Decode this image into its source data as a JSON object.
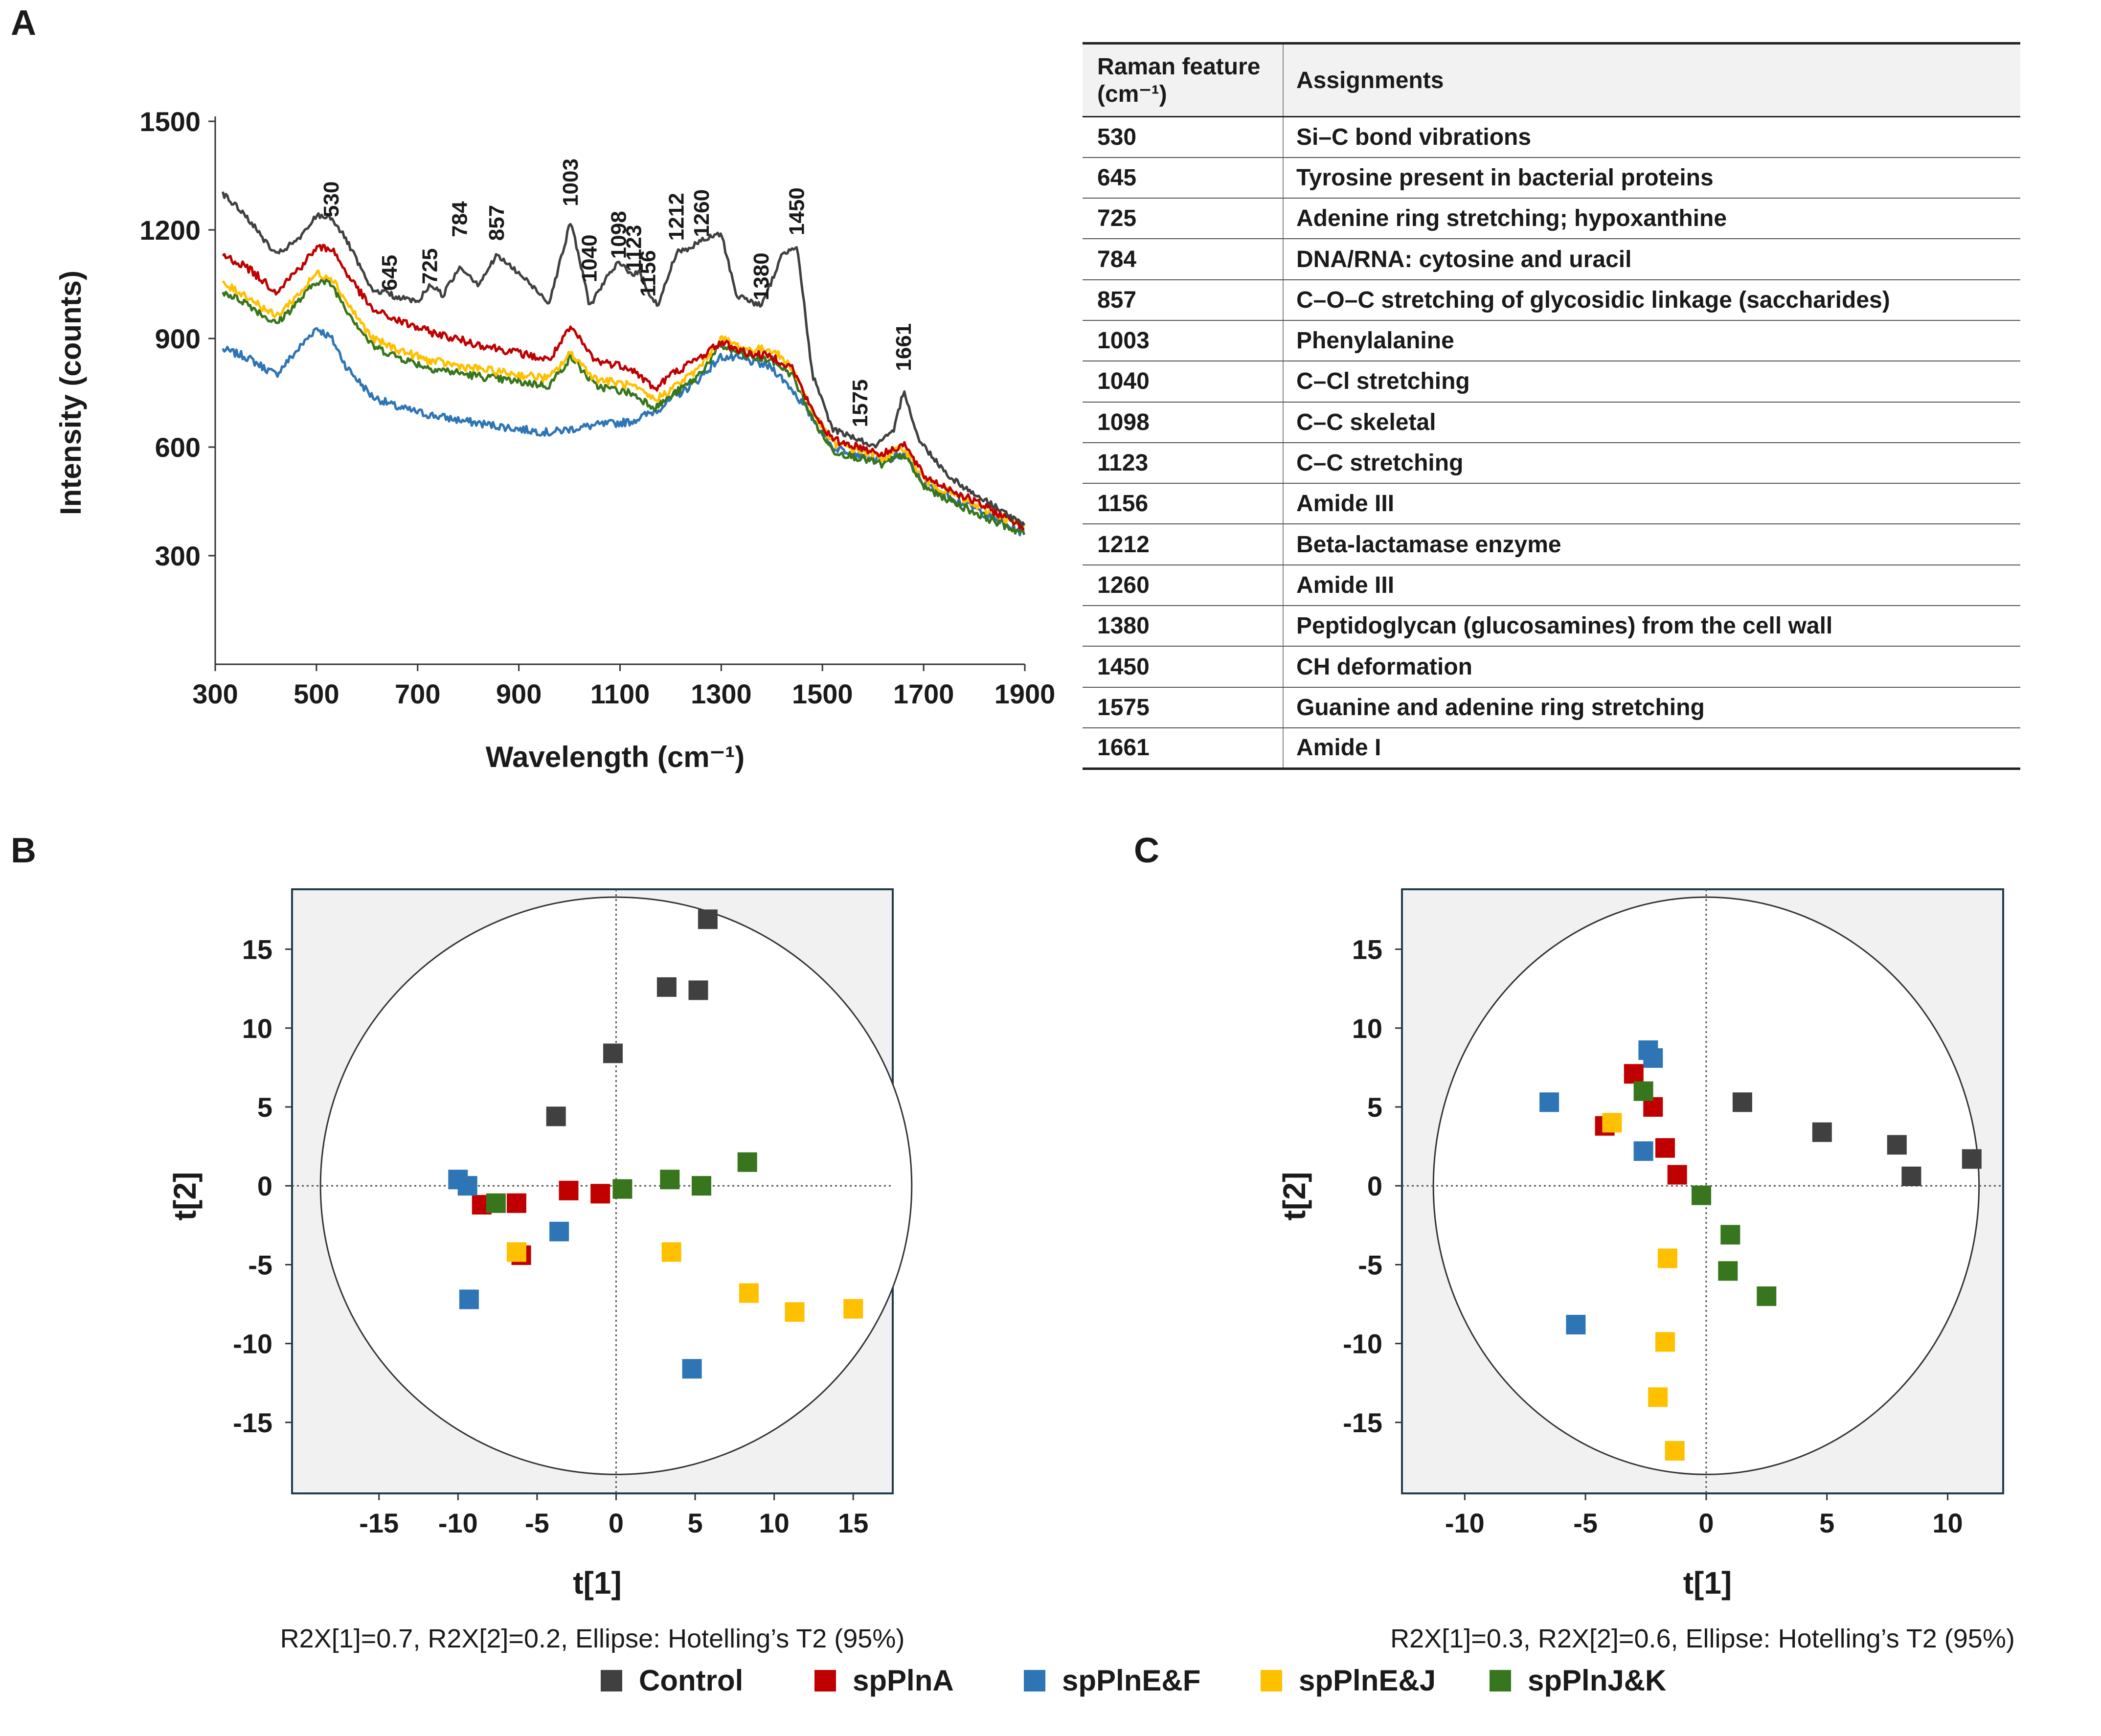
{
  "panels": {
    "a": "A",
    "b": "B",
    "c": "C"
  },
  "spectra": {
    "xlabel": "Wavelength (cm⁻¹)",
    "ylabel": "Intensity (counts)",
    "xlim": [
      300,
      1900
    ],
    "ylim": [
      0,
      1500
    ],
    "xticks": [
      300,
      500,
      700,
      900,
      1100,
      1300,
      1500,
      1700,
      1900
    ],
    "yticks": [
      300,
      600,
      900,
      1200,
      1500
    ],
    "peak_labels": [
      {
        "label": "530",
        "x": 530,
        "y": 1235
      },
      {
        "label": "645",
        "x": 645,
        "y": 1032
      },
      {
        "label": "725",
        "x": 725,
        "y": 1050
      },
      {
        "label": "784",
        "x": 784,
        "y": 1180
      },
      {
        "label": "857",
        "x": 857,
        "y": 1170
      },
      {
        "label": "1003",
        "x": 1003,
        "y": 1265
      },
      {
        "label": "1040",
        "x": 1040,
        "y": 1055
      },
      {
        "label": "1098",
        "x": 1098,
        "y": 1120
      },
      {
        "label": "1123",
        "x": 1128,
        "y": 1085
      },
      {
        "label": "1156",
        "x": 1156,
        "y": 1015
      },
      {
        "label": "1212",
        "x": 1212,
        "y": 1170
      },
      {
        "label": "1260",
        "x": 1262,
        "y": 1180
      },
      {
        "label": "1380",
        "x": 1380,
        "y": 1005
      },
      {
        "label": "1450",
        "x": 1450,
        "y": 1185
      },
      {
        "label": "1575",
        "x": 1575,
        "y": 655
      },
      {
        "label": "1661",
        "x": 1661,
        "y": 810
      }
    ]
  },
  "table": {
    "header": {
      "feature_line1": "Raman feature",
      "feature_line2": "(cm⁻¹)",
      "assignment": "Assignments"
    },
    "rows": [
      {
        "feature": "530",
        "assignment": "Si–C bond vibrations"
      },
      {
        "feature": "645",
        "assignment": "Tyrosine present in bacterial proteins"
      },
      {
        "feature": "725",
        "assignment": "Adenine ring stretching; hypoxanthine"
      },
      {
        "feature": "784",
        "assignment": "DNA/RNA: cytosine and uracil"
      },
      {
        "feature": "857",
        "assignment": "C–O–C stretching of glycosidic linkage (saccharides)"
      },
      {
        "feature": "1003",
        "assignment": "Phenylalanine"
      },
      {
        "feature": "1040",
        "assignment": "C–Cl stretching"
      },
      {
        "feature": "1098",
        "assignment": "C–C skeletal"
      },
      {
        "feature": "1123",
        "assignment": "C–C stretching"
      },
      {
        "feature": "1156",
        "assignment": "Amide III"
      },
      {
        "feature": "1212",
        "assignment": "Beta-lactamase enzyme"
      },
      {
        "feature": "1260",
        "assignment": "Amide III"
      },
      {
        "feature": "1380",
        "assignment": "Peptidoglycan (glucosamines) from the cell wall"
      },
      {
        "feature": "1450",
        "assignment": "CH deformation"
      },
      {
        "feature": "1575",
        "assignment": "Guanine and adenine ring stretching"
      },
      {
        "feature": "1661",
        "assignment": "Amide I"
      }
    ]
  },
  "pca_b": {
    "xlabel": "t[1]",
    "ylabel": "t[2]",
    "caption": "R2X[1]=0.7, R2X[2]=0.2, Ellipse: Hotelling’s T2 (95%)",
    "xlim": [
      -20.5,
      17.5
    ],
    "ylim": [
      -19.5,
      18.8
    ],
    "xticks": [
      -15,
      -10,
      -5,
      0,
      5,
      10,
      15
    ],
    "yticks": [
      15,
      10,
      5,
      0,
      -5,
      -10,
      -15
    ],
    "ellipse": {
      "rx": 18.7,
      "ry": 18.3
    },
    "points": {
      "Control": [
        [
          5.8,
          16.9
        ],
        [
          3.2,
          12.6
        ],
        [
          5.2,
          12.4
        ],
        [
          -0.2,
          8.4
        ],
        [
          -3.8,
          4.4
        ]
      ],
      "spPlnA": [
        [
          -3.0,
          -0.3
        ],
        [
          -1.0,
          -0.5
        ],
        [
          -8.5,
          -1.2
        ],
        [
          -6.3,
          -1.1
        ],
        [
          -6.0,
          -4.4
        ]
      ],
      "spPlnE&F": [
        [
          -10.0,
          0.4
        ],
        [
          -9.4,
          0.0
        ],
        [
          -3.6,
          -2.9
        ],
        [
          -9.3,
          -7.2
        ],
        [
          4.8,
          -11.6
        ]
      ],
      "spPlnE&J": [
        [
          -6.3,
          -4.2
        ],
        [
          3.5,
          -4.2
        ],
        [
          8.4,
          -6.8
        ],
        [
          11.3,
          -8.0
        ],
        [
          15.0,
          -7.8
        ]
      ],
      "spPlnJ&K": [
        [
          0.4,
          -0.2
        ],
        [
          3.4,
          0.4
        ],
        [
          5.4,
          0.0
        ],
        [
          8.3,
          1.5
        ],
        [
          -7.6,
          -1.1
        ]
      ]
    }
  },
  "pca_c": {
    "xlabel": "t[1]",
    "ylabel": "t[2]",
    "caption": "R2X[1]=0.3, R2X[2]=0.6, Ellipse: Hotelling’s T2 (95%)",
    "xlim": [
      -12.6,
      12.3
    ],
    "ylim": [
      -19.5,
      18.8
    ],
    "xticks": [
      -10,
      -5,
      0,
      5,
      10
    ],
    "yticks": [
      15,
      10,
      5,
      0,
      -5,
      -10,
      -15
    ],
    "ellipse": {
      "rx": 11.3,
      "ry": 18.3
    },
    "points": {
      "Control": [
        [
          1.5,
          5.3
        ],
        [
          4.8,
          3.4
        ],
        [
          7.9,
          2.6
        ],
        [
          8.5,
          0.6
        ],
        [
          11.0,
          1.7
        ]
      ],
      "spPlnA": [
        [
          -3.0,
          7.1
        ],
        [
          -2.2,
          5.0
        ],
        [
          -4.2,
          3.8
        ],
        [
          -1.7,
          2.4
        ],
        [
          -1.2,
          0.7
        ]
      ],
      "spPlnE&F": [
        [
          -6.5,
          5.3
        ],
        [
          -2.4,
          8.6
        ],
        [
          -2.2,
          8.1
        ],
        [
          -2.6,
          2.2
        ],
        [
          -5.4,
          -8.8
        ]
      ],
      "spPlnE&J": [
        [
          -3.9,
          4.0
        ],
        [
          -1.6,
          -4.6
        ],
        [
          -1.7,
          -9.9
        ],
        [
          -2.0,
          -13.4
        ],
        [
          -1.3,
          -16.8
        ]
      ],
      "spPlnJ&K": [
        [
          -2.6,
          6.0
        ],
        [
          -0.2,
          -0.6
        ],
        [
          1.0,
          -3.1
        ],
        [
          0.9,
          -5.4
        ],
        [
          2.5,
          -7.0
        ]
      ]
    }
  },
  "legend": [
    {
      "name": "Control",
      "color": "#404040"
    },
    {
      "name": "spPlnA",
      "color": "#c00000"
    },
    {
      "name": "spPlnE&F",
      "color": "#2e75b6"
    },
    {
      "name": "spPlnE&J",
      "color": "#ffc000"
    },
    {
      "name": "spPlnJ&K",
      "color": "#38761d"
    }
  ],
  "series_colors": {
    "Control": "#404040",
    "spPlnA": "#c00000",
    "spPlnE&F": "#2e75b6",
    "spPlnE&J": "#ffc000",
    "spPlnJ&K": "#38761d"
  },
  "chart_data": [
    {
      "type": "line",
      "title": "",
      "xlabel": "Wavelength (cm⁻¹)",
      "ylabel": "Intensity (counts)",
      "xlim": [
        300,
        1900
      ],
      "ylim": [
        0,
        1500
      ],
      "series": [
        {
          "name": "Control",
          "x": [
            315,
            360,
            420,
            470,
            500,
            530,
            560,
            610,
            640,
            660,
            680,
            700,
            725,
            750,
            784,
            820,
            857,
            900,
            960,
            1003,
            1040,
            1070,
            1098,
            1123,
            1140,
            1156,
            1175,
            1212,
            1240,
            1260,
            1300,
            1330,
            1380,
            1420,
            1450,
            1480,
            1520,
            1575,
            1600,
            1640,
            1661,
            1690,
            1750,
            1800,
            1850,
            1900
          ],
          "y": [
            1300,
            1240,
            1130,
            1180,
            1240,
            1235,
            1170,
            1030,
            1030,
            1010,
            1010,
            1000,
            1050,
            1020,
            1100,
            1050,
            1130,
            1080,
            1000,
            1225,
            990,
            1060,
            1110,
            1080,
            1080,
            1030,
            990,
            1140,
            1150,
            1170,
            1190,
            1020,
            990,
            1130,
            1160,
            800,
            650,
            620,
            600,
            640,
            760,
            620,
            520,
            470,
            430,
            380
          ]
        },
        {
          "name": "spPlnA",
          "x": [
            315,
            360,
            420,
            470,
            500,
            530,
            560,
            610,
            660,
            720,
            800,
            900,
            960,
            1003,
            1050,
            1120,
            1170,
            1200,
            1250,
            1300,
            1350,
            1400,
            1440,
            1480,
            1520,
            1575,
            1620,
            1661,
            1700,
            1800,
            1900
          ],
          "y": [
            1130,
            1100,
            1030,
            1100,
            1150,
            1150,
            1080,
            980,
            950,
            920,
            890,
            860,
            840,
            930,
            840,
            820,
            760,
            800,
            840,
            890,
            860,
            850,
            820,
            700,
            620,
            600,
            580,
            610,
            520,
            450,
            380
          ]
        },
        {
          "name": "spPlnE&J",
          "x": [
            315,
            360,
            420,
            470,
            500,
            530,
            560,
            610,
            660,
            720,
            800,
            900,
            960,
            1003,
            1050,
            1120,
            1170,
            1200,
            1250,
            1300,
            1350,
            1400,
            1440,
            1480,
            1520,
            1575,
            1620,
            1661,
            1700,
            1800,
            1900
          ],
          "y": [
            1050,
            1020,
            960,
            1030,
            1080,
            1070,
            1000,
            900,
            870,
            840,
            820,
            800,
            790,
            860,
            790,
            770,
            730,
            760,
            810,
            900,
            870,
            870,
            820,
            700,
            610,
            590,
            570,
            600,
            510,
            440,
            380
          ]
        },
        {
          "name": "spPlnJ&K",
          "x": [
            315,
            360,
            420,
            470,
            500,
            530,
            560,
            610,
            660,
            720,
            800,
            900,
            960,
            1003,
            1050,
            1120,
            1170,
            1200,
            1250,
            1300,
            1350,
            1400,
            1440,
            1480,
            1520,
            1575,
            1620,
            1661,
            1700,
            1800,
            1900
          ],
          "y": [
            1030,
            1000,
            940,
            1010,
            1060,
            1050,
            980,
            880,
            850,
            820,
            800,
            780,
            770,
            850,
            770,
            750,
            710,
            740,
            790,
            880,
            850,
            840,
            800,
            680,
            590,
            570,
            550,
            580,
            490,
            420,
            360
          ]
        },
        {
          "name": "spPlnE&F",
          "x": [
            315,
            360,
            420,
            470,
            500,
            530,
            560,
            610,
            660,
            720,
            800,
            900,
            960,
            1003,
            1050,
            1120,
            1170,
            1200,
            1250,
            1300,
            1350,
            1400,
            1440,
            1480,
            1520,
            1575,
            1620,
            1661,
            1700,
            1800,
            1900
          ],
          "y": [
            870,
            850,
            800,
            880,
            930,
            900,
            820,
            740,
            710,
            690,
            670,
            650,
            640,
            650,
            660,
            670,
            700,
            730,
            780,
            850,
            840,
            820,
            760,
            680,
            600,
            580,
            560,
            580,
            500,
            430,
            360
          ]
        }
      ]
    },
    {
      "type": "scatter",
      "title": "B",
      "xlabel": "t[1]",
      "ylabel": "t[2]",
      "xlim": [
        -20.5,
        17.5
      ],
      "ylim": [
        -19.5,
        18.8
      ],
      "series_ref": "pca_b.points"
    },
    {
      "type": "scatter",
      "title": "C",
      "xlabel": "t[1]",
      "ylabel": "t[2]",
      "xlim": [
        -12.6,
        12.3
      ],
      "ylim": [
        -19.5,
        18.8
      ],
      "series_ref": "pca_c.points"
    }
  ]
}
